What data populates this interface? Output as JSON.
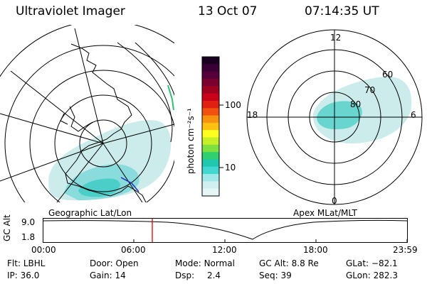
{
  "header": {
    "instrument": "Ultraviolet Imager",
    "date": "13 Oct 07",
    "time": "07:14:35 UT"
  },
  "left_map": {
    "label": "Geographic Lat/Lon"
  },
  "right_map": {
    "label": "Apex MLat/MLT",
    "mlt_labels": [
      "12",
      "18",
      "6",
      "0"
    ],
    "lat_labels": [
      "60",
      "70",
      "80"
    ]
  },
  "colorbar": {
    "unit_label": "photon cm⁻²s⁻¹",
    "ticks": [
      "100",
      "10"
    ],
    "colors": [
      "#1a0020",
      "#3a0035",
      "#55003a",
      "#7a0030",
      "#a00020",
      "#c8001a",
      "#e02010",
      "#f05010",
      "#f89010",
      "#ffc010",
      "#ffff20",
      "#c8f028",
      "#80e040",
      "#30d070",
      "#20c8b0",
      "#40d8d0",
      "#a0e8e8",
      "#d0f0f0",
      "#e6f6f6"
    ]
  },
  "timeline": {
    "axis_label": "GC Alt",
    "y_ticks": [
      "9.0",
      "1.8"
    ],
    "x_ticks": [
      "00:00",
      "06:00",
      "12:00",
      "18:00",
      "23:59"
    ],
    "marker_color": "#e00000"
  },
  "status": {
    "flt_label": "Flt:",
    "flt_value": "LBHL",
    "ip_label": "IP:",
    "ip_value": "36.0",
    "door_label": "Door:",
    "door_value": "Open",
    "gain_label": "Gain:",
    "gain_value": "14",
    "mode_label": "Mode:",
    "mode_value": "Normal",
    "dsp_label": "Dsp:",
    "dsp_value": "2.4",
    "gcalt_label": "GC Alt:",
    "gcalt_value": "8.8 Re",
    "seq_label": "Seq:",
    "seq_value": "39",
    "glat_label": "GLat:",
    "glat_value": "−82.1",
    "glon_label": "GLon:",
    "glon_value": "282.3"
  }
}
